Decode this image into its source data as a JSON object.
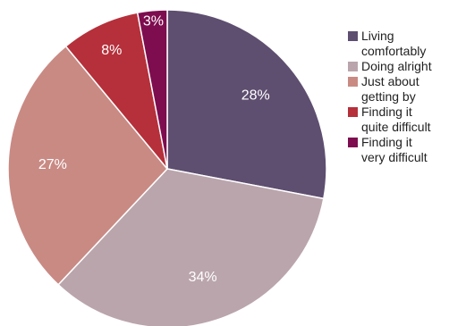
{
  "chart_data": {
    "type": "pie",
    "title": "",
    "slices": [
      {
        "label": "Living\ncomfortably",
        "value": 28,
        "display": "28%",
        "color": "#5e4e70"
      },
      {
        "label": "Doing alright",
        "value": 34,
        "display": "34%",
        "color": "#baa5ac"
      },
      {
        "label": "Just about\ngetting by",
        "value": 27,
        "display": "27%",
        "color": "#c98a84"
      },
      {
        "label": "Finding it\nquite difficult",
        "value": 8,
        "display": "8%",
        "color": "#b5303a"
      },
      {
        "label": "Finding it\nvery difficult",
        "value": 3,
        "display": "3%",
        "color": "#7e0d4f"
      }
    ],
    "start_angle_deg": 0,
    "direction": "clockwise",
    "legend_position": "right"
  }
}
